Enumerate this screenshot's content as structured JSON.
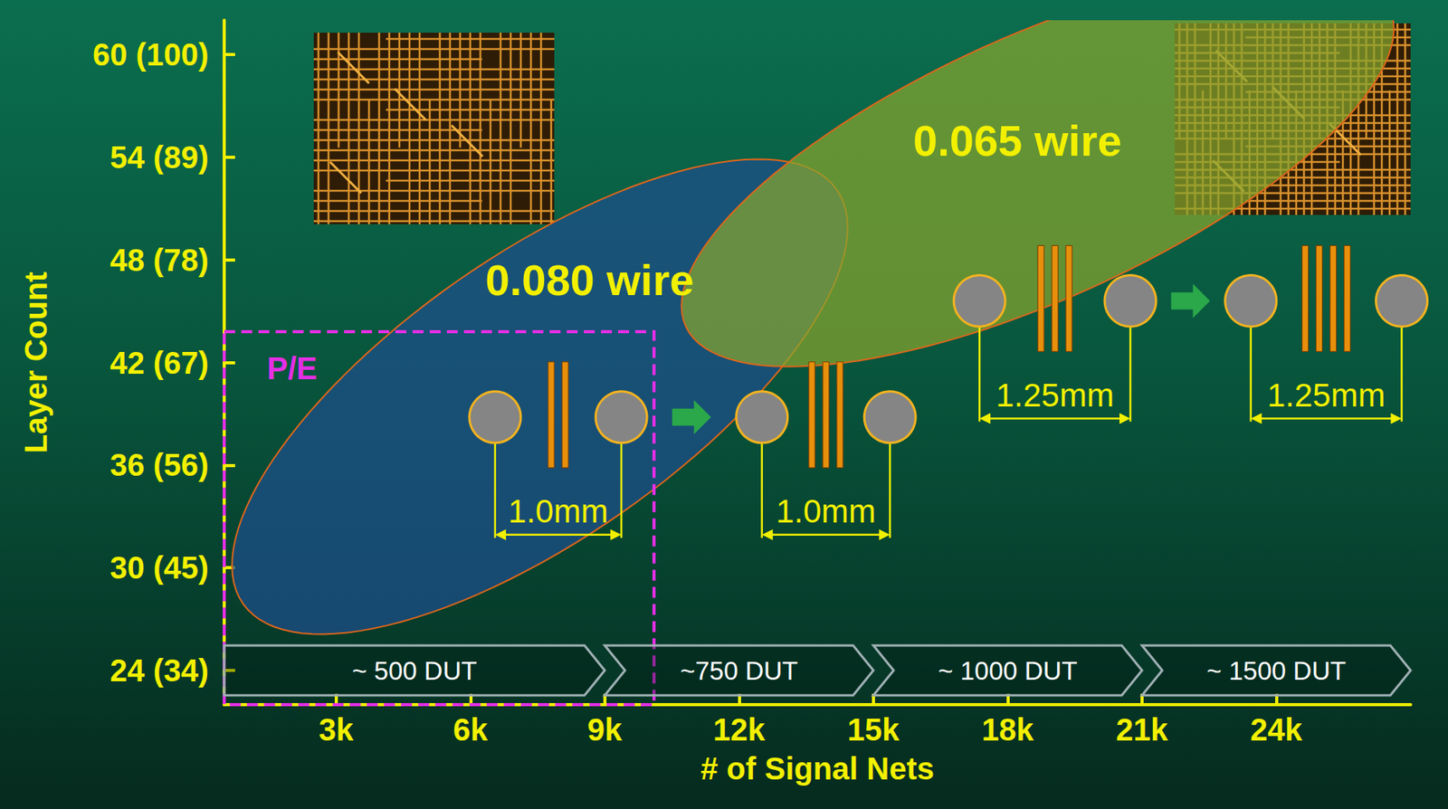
{
  "chart_data": {
    "type": "region",
    "xlabel": "# of Signal Nets",
    "ylabel": "Layer Count",
    "xlim": [
      500,
      27000
    ],
    "ylim": [
      22,
      62
    ],
    "xticks": [
      {
        "value": 3000,
        "label": "3k"
      },
      {
        "value": 6000,
        "label": "6k"
      },
      {
        "value": 9000,
        "label": "9k"
      },
      {
        "value": 12000,
        "label": "12k"
      },
      {
        "value": 15000,
        "label": "15k"
      },
      {
        "value": 18000,
        "label": "18k"
      },
      {
        "value": 21000,
        "label": "21k"
      },
      {
        "value": 24000,
        "label": "24k"
      }
    ],
    "yticks": [
      {
        "value": 24,
        "label": "24 (34)"
      },
      {
        "value": 30,
        "label": "30 (45)"
      },
      {
        "value": 36,
        "label": "36 (56)"
      },
      {
        "value": 42,
        "label": "42 (67)"
      },
      {
        "value": 48,
        "label": "48 (78)"
      },
      {
        "value": 54,
        "label": "54 (89)"
      },
      {
        "value": 60,
        "label": "60 (100)"
      }
    ],
    "grid": false,
    "regions": [
      {
        "name": "0.080 wire",
        "color": "#1f4f8c",
        "center": [
          7550,
          40
        ],
        "major_end": [
          14180,
          52.1
        ],
        "minor_end": [
          9370,
          33.2
        ]
      },
      {
        "name": "0.065 wire",
        "color": "#86a52e",
        "center": [
          18670,
          53.4
        ],
        "major_end": [
          26530,
          62.7
        ],
        "minor_end": [
          19900,
          46.4
        ]
      }
    ],
    "box": {
      "name": "P/E",
      "color": "#e62ee6",
      "line_style": "dashed",
      "x": [
        500,
        10100
      ],
      "y": [
        22,
        43.8
      ]
    },
    "bands": [
      {
        "label": "~ 500 DUT",
        "from": 500,
        "to": 9000
      },
      {
        "label": "~750 DUT",
        "from": 9000,
        "to": 15000
      },
      {
        "label": "~ 1000 DUT",
        "from": 15000,
        "to": 21000
      },
      {
        "label": "~ 1500 DUT",
        "from": 21000,
        "to": 27000
      }
    ],
    "pitch_groups": [
      {
        "pitch_label": "1.0mm",
        "y": 38.8,
        "steps": [
          {
            "pads": [
              6550,
              9370
            ],
            "wires": 2
          },
          {
            "pads": [
              12510,
              15370
            ],
            "wires": 3
          }
        ]
      },
      {
        "pitch_label": "1.25mm",
        "y": 45.6,
        "steps": [
          {
            "pads": [
              17370,
              20740
            ],
            "wires": 3
          },
          {
            "pads": [
              23430,
              26800
            ],
            "wires": 4
          }
        ]
      }
    ]
  }
}
